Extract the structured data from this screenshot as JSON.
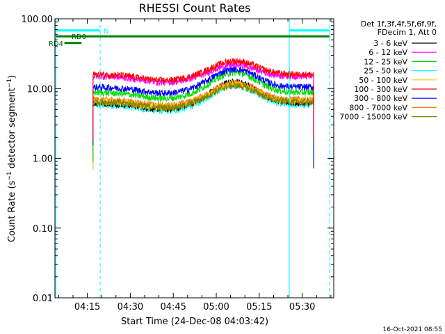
{
  "chart_data": {
    "type": "line",
    "title": "RHESSI Count Rates",
    "xlabel": "Start Time (24-Dec-08 04:03:42)",
    "ylabel_prefix": "Count Rate (s",
    "ylabel_sup": "−1",
    "ylabel_mid": " detector segment",
    "ylabel_sup2": "−1",
    "ylabel_suffix": ")",
    "yscale": "log",
    "ylim": [
      0.01,
      100
    ],
    "xlim_min": [
      243.7,
      341.0
    ],
    "x_ticks": [
      {
        "label": "04:15",
        "min": 255
      },
      {
        "label": "04:30",
        "min": 270
      },
      {
        "label": "04:45",
        "min": 285
      },
      {
        "label": "05:00",
        "min": 300
      },
      {
        "label": "05:15",
        "min": 315
      },
      {
        "label": "05:30",
        "min": 330
      }
    ],
    "y_ticks": [
      {
        "label": "0.01",
        "v": 0.01
      },
      {
        "label": "0.10",
        "v": 0.1
      },
      {
        "label": "1.00",
        "v": 1
      },
      {
        "label": "10.00",
        "v": 10
      },
      {
        "label": "100.00",
        "v": 100
      }
    ],
    "legend_header": [
      "Det 1f,3f,4f,5f,6f,9f,",
      "FDecim 1, Att 0"
    ],
    "series": [
      {
        "name": "3 - 6 keV",
        "color": "#000000",
        "base": 6.2,
        "peak": 12.5
      },
      {
        "name": "6 - 12 keV",
        "color": "#ff00ff",
        "base": 15.0,
        "peak": 22.0
      },
      {
        "name": "12 - 25 keV",
        "color": "#00dd00",
        "base": 8.8,
        "peak": 17.0
      },
      {
        "name": "25 - 50 keV",
        "color": "#00ffff",
        "base": 5.8,
        "peak": 11.0
      },
      {
        "name": "50 - 100 keV",
        "color": "#ffc800",
        "base": 6.5,
        "peak": 11.5
      },
      {
        "name": "100 - 300 keV",
        "color": "#ff0000",
        "base": 16.0,
        "peak": 25.0
      },
      {
        "name": "300 - 800 keV",
        "color": "#0000ff",
        "base": 10.5,
        "peak": 19.0
      },
      {
        "name": "800 - 7000 keV",
        "color": "#ff8000",
        "base": 7.0,
        "peak": 12.0
      },
      {
        "name": "7000 - 15000 keV",
        "color": "#808000",
        "base": 6.5,
        "peak": 11.0
      }
    ],
    "data_start_min": 257.0,
    "data_end_min": 334.0,
    "peak_min": 306.5,
    "annotations": {
      "night_label": "N",
      "rd0_label": "RD0",
      "rd4_label": "RD4",
      "night_bars": [
        [
          244.0,
          259.5
        ],
        [
          325.5,
          339.5
        ]
      ],
      "rd0_span": [
        244.0,
        339.5
      ],
      "rd4_span": [
        247.0,
        253.0
      ],
      "solid_vlines": [
        244.0,
        325.5
      ],
      "dashed_vlines": [
        259.5,
        339.5
      ]
    }
  },
  "timestamp": "16-Oct-2021 08:55"
}
